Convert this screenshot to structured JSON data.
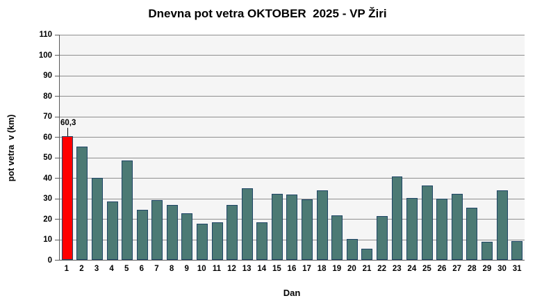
{
  "title": "Dnevna pot vetra OKTOBER  2025 - VP Žiri",
  "chart_data": {
    "type": "bar",
    "title": "Dnevna pot vetra OKTOBER  2025 - VP Žiri",
    "xlabel": "Dan",
    "ylabel": "pot vetra  v (km)",
    "categories": [
      1,
      2,
      3,
      4,
      5,
      6,
      7,
      8,
      9,
      10,
      11,
      12,
      13,
      14,
      15,
      16,
      17,
      18,
      19,
      20,
      21,
      22,
      23,
      24,
      25,
      26,
      27,
      28,
      29,
      30,
      31
    ],
    "values": [
      60.3,
      55.3,
      40.0,
      28.4,
      48.7,
      24.3,
      29.1,
      26.7,
      22.6,
      17.8,
      18.4,
      26.8,
      35.1,
      18.3,
      32.4,
      32.0,
      29.7,
      34.1,
      21.8,
      10.2,
      5.3,
      21.3,
      40.6,
      30.2,
      36.2,
      29.8,
      32.3,
      25.6,
      8.7,
      33.8,
      9.1
    ],
    "ylim": [
      0,
      110
    ],
    "ytick_step": 10,
    "grid": true,
    "legend": false,
    "highlight": {
      "index": 0,
      "label": "60,3"
    }
  },
  "colors": {
    "bar_fill": "#4c7a74",
    "bar_border": "#1f4566",
    "highlight_fill": "#ff0000",
    "plot_bg": "#f5f5f5",
    "gridline": "#8e8e8e",
    "axis": "#595959",
    "text": "#000000"
  }
}
